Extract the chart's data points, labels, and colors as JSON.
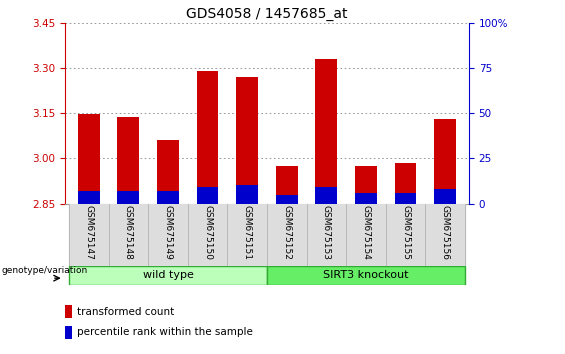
{
  "title": "GDS4058 / 1457685_at",
  "samples": [
    "GSM675147",
    "GSM675148",
    "GSM675149",
    "GSM675150",
    "GSM675151",
    "GSM675152",
    "GSM675153",
    "GSM675154",
    "GSM675155",
    "GSM675156"
  ],
  "transformed_counts": [
    3.148,
    3.138,
    3.06,
    3.29,
    3.27,
    2.975,
    3.33,
    2.975,
    2.985,
    3.13
  ],
  "percentile_ranks": [
    7,
    7,
    7,
    9,
    10,
    5,
    9,
    6,
    6,
    8
  ],
  "ylim_left": [
    2.85,
    3.45
  ],
  "ylim_right": [
    0,
    100
  ],
  "yticks_left": [
    2.85,
    3.0,
    3.15,
    3.3,
    3.45
  ],
  "yticks_right": [
    0,
    25,
    50,
    75,
    100
  ],
  "ytick_labels_right": [
    "0",
    "25",
    "50",
    "75",
    "100%"
  ],
  "bar_color_red": "#cc0000",
  "bar_color_blue": "#0000cc",
  "bar_width": 0.55,
  "group1_label": "wild type",
  "group2_label": "SIRT3 knockout",
  "group1_indices": [
    0,
    1,
    2,
    3,
    4
  ],
  "group2_indices": [
    5,
    6,
    7,
    8,
    9
  ],
  "group1_color": "#bbffbb",
  "group2_color": "#66ee66",
  "genotype_label": "genotype/variation",
  "legend_red": "transformed count",
  "legend_blue": "percentile rank within the sample",
  "grid_color": "#888888",
  "left_tick_color": "#cc0000",
  "right_tick_color": "#0000cc",
  "base_value": 2.85
}
